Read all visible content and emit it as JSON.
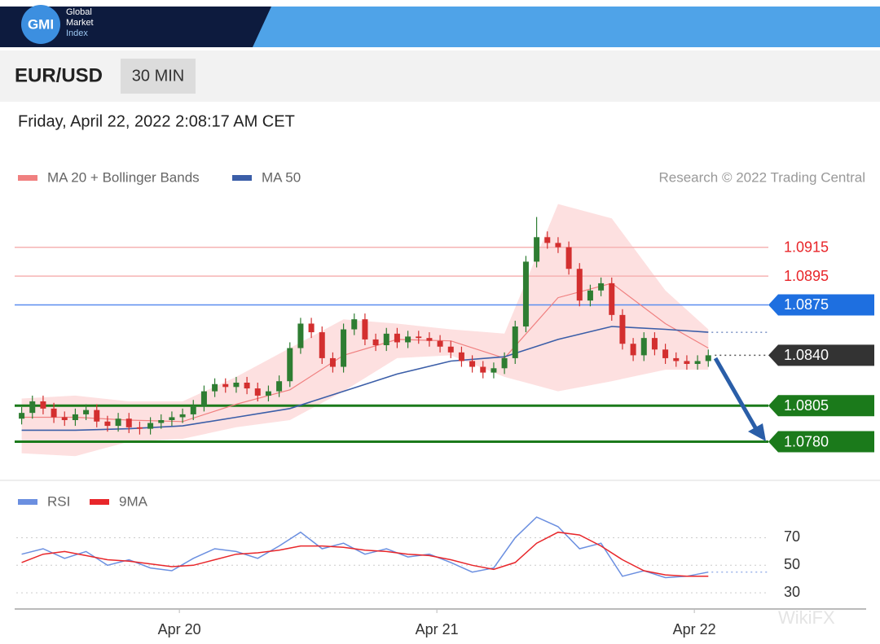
{
  "header": {
    "logo": "GMI",
    "brand": [
      "Global",
      "Market",
      "Index"
    ],
    "symbol": "EUR/USD",
    "interval": "30 MIN",
    "datetime": "Friday, April 22, 2022 2:08:17 AM CET",
    "credit": "Research © 2022 Trading Central",
    "watermark": "WikiFX"
  },
  "chart_data": [
    {
      "type": "candlestick",
      "xlim": [
        -0.5,
        69.6
      ],
      "ylim": [
        1.0756,
        1.0951
      ],
      "up_color": "#2e7d32",
      "down_color": "#d32f2f",
      "x": [
        0,
        1,
        2,
        3,
        4,
        5,
        6,
        7,
        8,
        9,
        10,
        11,
        12,
        13,
        14,
        15,
        16,
        17,
        18,
        19,
        20,
        21,
        22,
        23,
        24,
        25,
        26,
        27,
        28,
        29,
        30,
        31,
        32,
        33,
        34,
        35,
        36,
        37,
        38,
        39,
        40,
        41,
        42,
        43,
        44,
        45,
        46,
        47,
        48,
        49,
        50,
        51,
        52,
        53,
        54,
        55,
        56,
        57,
        58,
        59,
        60,
        61,
        62,
        63,
        64
      ],
      "open": [
        1.0796,
        1.08,
        1.0808,
        1.0803,
        1.0797,
        1.0795,
        1.0799,
        1.0802,
        1.0794,
        1.0791,
        1.0796,
        1.079,
        1.0789,
        1.0793,
        1.0795,
        1.0797,
        1.0799,
        1.0805,
        1.0815,
        1.082,
        1.0818,
        1.0821,
        1.0817,
        1.0812,
        1.0815,
        1.0822,
        1.0845,
        1.0862,
        1.0856,
        1.0838,
        1.0832,
        1.0858,
        1.0865,
        1.0851,
        1.0847,
        1.0855,
        1.0849,
        1.0853,
        1.0852,
        1.085,
        1.0846,
        1.0842,
        1.0836,
        1.0832,
        1.0828,
        1.0831,
        1.0838,
        1.086,
        1.0905,
        1.0922,
        1.0918,
        1.0915,
        1.09,
        1.0878,
        1.0885,
        1.089,
        1.0868,
        1.0848,
        1.084,
        1.0852,
        1.0844,
        1.0838,
        1.0836,
        1.0834,
        1.0836
      ],
      "high": [
        1.0804,
        1.0812,
        1.0812,
        1.0807,
        1.0801,
        1.0803,
        1.0806,
        1.0806,
        1.0798,
        1.08,
        1.08,
        1.0794,
        1.0797,
        1.0799,
        1.0801,
        1.0803,
        1.0809,
        1.0819,
        1.0824,
        1.0824,
        1.0825,
        1.0825,
        1.0821,
        1.0819,
        1.0826,
        1.0849,
        1.0866,
        1.0866,
        1.086,
        1.0842,
        1.0862,
        1.0869,
        1.0869,
        1.0855,
        1.0859,
        1.0859,
        1.0857,
        1.0857,
        1.0856,
        1.0854,
        1.085,
        1.0846,
        1.084,
        1.0836,
        1.0835,
        1.0842,
        1.0864,
        1.0909,
        1.0936,
        1.0926,
        1.0922,
        1.0919,
        1.0904,
        1.0889,
        1.0894,
        1.0894,
        1.0872,
        1.0852,
        1.0856,
        1.0856,
        1.0848,
        1.0842,
        1.084,
        1.084,
        1.0844
      ],
      "low": [
        1.0792,
        1.0796,
        1.0799,
        1.0793,
        1.0791,
        1.0791,
        1.0795,
        1.079,
        1.0787,
        1.0787,
        1.0786,
        1.0785,
        1.0785,
        1.0789,
        1.0791,
        1.0793,
        1.0795,
        1.0801,
        1.0811,
        1.0814,
        1.0814,
        1.0813,
        1.0808,
        1.0808,
        1.0811,
        1.0818,
        1.0841,
        1.0852,
        1.0834,
        1.0828,
        1.0828,
        1.0854,
        1.0847,
        1.0843,
        1.0843,
        1.0845,
        1.0845,
        1.0848,
        1.0846,
        1.0842,
        1.0838,
        1.0832,
        1.0828,
        1.0824,
        1.0824,
        1.0827,
        1.0834,
        1.0856,
        1.0901,
        1.0914,
        1.0911,
        1.0896,
        1.0874,
        1.0874,
        1.0881,
        1.0864,
        1.0844,
        1.0836,
        1.0836,
        1.084,
        1.0834,
        1.0832,
        1.083,
        1.083,
        1.0832
      ],
      "close": [
        1.08,
        1.0808,
        1.0803,
        1.0797,
        1.0795,
        1.0799,
        1.0802,
        1.0794,
        1.0791,
        1.0796,
        1.079,
        1.0789,
        1.0793,
        1.0795,
        1.0797,
        1.0799,
        1.0805,
        1.0815,
        1.082,
        1.0818,
        1.0821,
        1.0817,
        1.0812,
        1.0815,
        1.0822,
        1.0845,
        1.0862,
        1.0856,
        1.0838,
        1.0832,
        1.0858,
        1.0865,
        1.0851,
        1.0847,
        1.0855,
        1.0849,
        1.0853,
        1.0852,
        1.085,
        1.0846,
        1.0842,
        1.0836,
        1.0832,
        1.0828,
        1.0831,
        1.0838,
        1.086,
        1.0905,
        1.0922,
        1.0918,
        1.0915,
        1.09,
        1.0878,
        1.0885,
        1.089,
        1.0868,
        1.0848,
        1.084,
        1.0852,
        1.0844,
        1.0838,
        1.0836,
        1.0834,
        1.0836,
        1.084
      ],
      "overlays": {
        "x": [
          0,
          5,
          10,
          15,
          20,
          25,
          30,
          35,
          40,
          45,
          50,
          55,
          60,
          64
        ],
        "series": [
          {
            "name": "MA 20 + Bollinger Bands",
            "color": "#f08080",
            "band_color": "#fde0e0",
            "values": [
              1.0797,
              1.0797,
              1.0795,
              1.0794,
              1.0806,
              1.0816,
              1.084,
              1.0851,
              1.085,
              1.0838,
              1.088,
              1.089,
              1.0862,
              1.0845
            ],
            "upper": [
              1.081,
              1.0812,
              1.0808,
              1.0808,
              1.0825,
              1.0845,
              1.0865,
              1.0862,
              1.0858,
              1.0855,
              1.0945,
              1.0935,
              1.0885,
              1.0858
            ],
            "lower": [
              1.0772,
              1.077,
              1.078,
              1.0782,
              1.079,
              1.0795,
              1.0815,
              1.0838,
              1.084,
              1.0825,
              1.0815,
              1.0822,
              1.083,
              1.083
            ]
          },
          {
            "name": "MA 50",
            "color": "#3b5ea8",
            "values": [
              1.0788,
              1.0788,
              1.0789,
              1.0791,
              1.0797,
              1.0803,
              1.0815,
              1.0827,
              1.0836,
              1.0839,
              1.0851,
              1.086,
              1.0858,
              1.0856
            ]
          }
        ]
      },
      "levels": [
        {
          "value": 1.0915,
          "line_color": "#f6b3b3",
          "text_color": "#e8262a",
          "box_color": null,
          "dotted": false
        },
        {
          "value": 1.0895,
          "line_color": "#f6b3b3",
          "text_color": "#e8262a",
          "box_color": null,
          "dotted": false
        },
        {
          "value": 1.0875,
          "line_color": "#5b8def",
          "text_color": "#ffffff",
          "box_color": "#1e6fe0",
          "dotted": false
        },
        {
          "value": 1.084,
          "label": "1.0840",
          "line_color": "#555555",
          "text_color": "#ffffff",
          "box_color": "#333333",
          "dotted": true
        },
        {
          "value": 1.0805,
          "line_color": "#1b7a1b",
          "text_color": "#ffffff",
          "box_color": "#1b7a1b",
          "dotted": false
        },
        {
          "value": 1.078,
          "label": "1.0780",
          "line_color": "#1b7a1b",
          "text_color": "#ffffff",
          "box_color": "#1b7a1b",
          "dotted": false
        }
      ]
    },
    {
      "type": "line",
      "xlim": [
        -0.5,
        69.6
      ],
      "ylim": [
        20,
        88
      ],
      "yticks": [
        30,
        50,
        70
      ],
      "grid": true,
      "xticks": [
        {
          "value": 14.7,
          "label": "Apr 20"
        },
        {
          "value": 38.7,
          "label": "Apr 21"
        },
        {
          "value": 62.7,
          "label": "Apr 22"
        }
      ],
      "x": [
        0,
        2,
        4,
        6,
        8,
        10,
        12,
        14,
        16,
        18,
        20,
        22,
        24,
        26,
        28,
        30,
        32,
        34,
        36,
        38,
        40,
        42,
        44,
        46,
        48,
        50,
        52,
        54,
        56,
        58,
        60,
        62,
        64
      ],
      "series": [
        {
          "name": "RSI",
          "color": "#6b8fe0",
          "values": [
            58,
            62,
            55,
            60,
            50,
            54,
            48,
            46,
            55,
            62,
            60,
            55,
            64,
            74,
            62,
            66,
            58,
            62,
            56,
            58,
            52,
            45,
            48,
            70,
            85,
            78,
            62,
            66,
            42,
            46,
            41,
            42,
            45
          ]
        },
        {
          "name": "9MA",
          "color": "#e8262a",
          "values": [
            52,
            58,
            60,
            57,
            54,
            53,
            51,
            49,
            50,
            54,
            58,
            59,
            61,
            64,
            64,
            63,
            61,
            60,
            58,
            57,
            54,
            50,
            47,
            52,
            66,
            74,
            72,
            64,
            54,
            46,
            43,
            42,
            42
          ]
        }
      ]
    }
  ]
}
